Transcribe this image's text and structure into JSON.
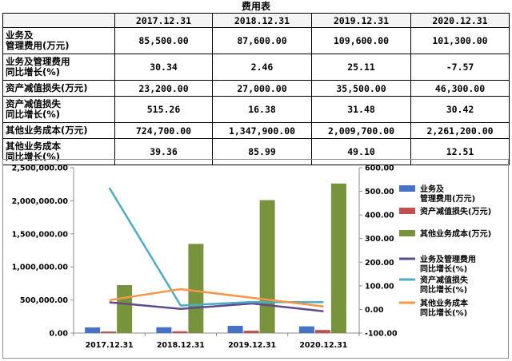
{
  "header": {
    "title": "费用表"
  },
  "table": {
    "columns": [
      "",
      "2017.12.31",
      "2018.12.31",
      "2019.12.31",
      "2020.12.31"
    ],
    "rows": [
      {
        "label_lines": [
          "业务及",
          "管理费用(万元)"
        ],
        "values": [
          "85,500.00",
          "87,600.00",
          "109,600.00",
          "101,300.00"
        ]
      },
      {
        "label_lines": [
          "业务及管理费用",
          "同比增长(%)"
        ],
        "values": [
          "30.34",
          "2.46",
          "25.11",
          "-7.57"
        ]
      },
      {
        "label_lines": [
          "资产减值损失(万元)"
        ],
        "values": [
          "23,200.00",
          "27,000.00",
          "35,500.00",
          "46,300.00"
        ]
      },
      {
        "label_lines": [
          "资产减值损失",
          "同比增长(%)"
        ],
        "values": [
          "515.26",
          "16.38",
          "31.48",
          "30.42"
        ]
      },
      {
        "label_lines": [
          "其他业务成本(万元)"
        ],
        "values": [
          "724,700.00",
          "1,347,900.00",
          "2,009,700.00",
          "2,261,200.00"
        ]
      },
      {
        "label_lines": [
          "其他业务成本",
          "同比增长(%)"
        ],
        "values": [
          "39.36",
          "85.99",
          "49.10",
          "12.51"
        ]
      }
    ]
  },
  "chart_data": {
    "type": "bar",
    "categories": [
      "2017.12.31",
      "2018.12.31",
      "2019.12.31",
      "2020.12.31"
    ],
    "y_left": {
      "min": 0,
      "max": 2500000,
      "step": 500000,
      "tick_labels": [
        "0.00",
        "500,000.00",
        "1,000,000.00",
        "1,500,000.00",
        "2,000,000.00",
        "2,500,000.00"
      ]
    },
    "y_right": {
      "min": -100,
      "max": 600,
      "step": 100,
      "tick_labels": [
        "-100.00",
        "0.00",
        "100.00",
        "200.00",
        "300.00",
        "400.00",
        "500.00",
        "600.00"
      ]
    },
    "grid": false,
    "legend_position": "right",
    "series": [
      {
        "name": "业务及管理费用(万元)",
        "legend_lines": [
          "业务及",
          "管理费用(万元)"
        ],
        "kind": "bar",
        "axis": "left",
        "color": "#4472c4",
        "values": [
          85500,
          87600,
          109600,
          101300
        ]
      },
      {
        "name": "资产减值损失(万元)",
        "legend_lines": [
          "资产减值损失(万元)"
        ],
        "kind": "bar",
        "axis": "left",
        "color": "#c0504d",
        "values": [
          23200,
          27000,
          35500,
          46300
        ]
      },
      {
        "name": "其他业务成本(万元)",
        "legend_lines": [
          "其他业务成本(万元)"
        ],
        "kind": "bar",
        "axis": "left",
        "color": "#77933c",
        "values": [
          724700,
          1347900,
          2009700,
          2261200
        ]
      },
      {
        "name": "业务及管理费用同比增长(%)",
        "legend_lines": [
          "业务及管理费用",
          "同比增长(%)"
        ],
        "kind": "line",
        "axis": "right",
        "color": "#5f4b8b",
        "values": [
          30.34,
          2.46,
          25.11,
          -7.57
        ]
      },
      {
        "name": "资产减值损失同比增长(%)",
        "legend_lines": [
          "资产减值损失",
          "同比增长(%)"
        ],
        "kind": "line",
        "axis": "right",
        "color": "#4bacc6",
        "values": [
          515.26,
          16.38,
          31.48,
          30.42
        ]
      },
      {
        "name": "其他业务成本同比增长(%)",
        "legend_lines": [
          "其他业务成本",
          "同比增长(%)"
        ],
        "kind": "line",
        "axis": "right",
        "color": "#f79646",
        "values": [
          39.36,
          85.99,
          49.1,
          12.51
        ]
      }
    ]
  }
}
